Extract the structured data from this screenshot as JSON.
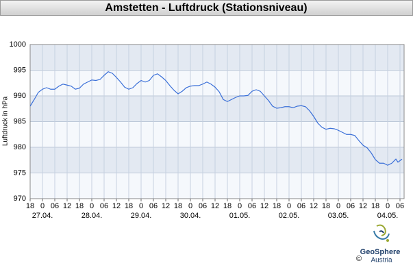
{
  "chart_data": {
    "type": "line",
    "title": "Amstetten - Luftdruck (Stationsniveau)",
    "y_label": "Luftdruck in hPa",
    "x": [
      0,
      2,
      4,
      6,
      8,
      10,
      12,
      14,
      16,
      18,
      20,
      22,
      24,
      26,
      28,
      30,
      32,
      34,
      36,
      38,
      40,
      42,
      44,
      46,
      48,
      50,
      52,
      54,
      56,
      58,
      60,
      62,
      64,
      66,
      68,
      70,
      72,
      74,
      76,
      78,
      80,
      82,
      84,
      86,
      88,
      90,
      92,
      94,
      96,
      98,
      100,
      102,
      104,
      106,
      108,
      110,
      112,
      114,
      116,
      118,
      120,
      122,
      124,
      126,
      128,
      130,
      132,
      134,
      136,
      138,
      140,
      142,
      144,
      146,
      148,
      150,
      152,
      154,
      156,
      158,
      160,
      162,
      164,
      166,
      168,
      170,
      172,
      174,
      176,
      178,
      179,
      181
    ],
    "series": [
      {
        "color": "#3a6fd8",
        "values": [
          988.0,
          989.3,
          990.7,
          991.3,
          991.6,
          991.3,
          991.3,
          991.9,
          992.3,
          992.1,
          991.9,
          991.3,
          991.5,
          992.3,
          992.7,
          993.1,
          993.0,
          993.2,
          994.0,
          994.7,
          994.4,
          993.6,
          992.7,
          991.7,
          991.3,
          991.6,
          992.4,
          993.0,
          992.7,
          993.0,
          994.0,
          994.3,
          993.7,
          993.0,
          992.0,
          991.1,
          990.4,
          990.9,
          991.6,
          991.9,
          992.0,
          992.0,
          992.3,
          992.7,
          992.3,
          991.7,
          990.8,
          989.3,
          988.9,
          989.3,
          989.7,
          990.0,
          990.0,
          990.1,
          990.9,
          991.2,
          990.9,
          990.0,
          989.1,
          988.0,
          987.6,
          987.7,
          987.9,
          987.9,
          987.7,
          988.0,
          988.1,
          987.9,
          987.1,
          986.0,
          984.7,
          983.9,
          983.5,
          983.7,
          983.6,
          983.3,
          982.9,
          982.5,
          982.5,
          982.3,
          981.3,
          980.4,
          979.9,
          978.9,
          977.6,
          976.9,
          976.9,
          976.5,
          976.9,
          977.7,
          977.1,
          977.7
        ]
      }
    ],
    "xlim": [
      0,
      182
    ],
    "xticks": [
      {
        "value": 0,
        "label": "18"
      },
      {
        "value": 6,
        "label": "0"
      },
      {
        "value": 12,
        "label": "06"
      },
      {
        "value": 18,
        "label": "12"
      },
      {
        "value": 24,
        "label": "18"
      },
      {
        "value": 30,
        "label": "0"
      },
      {
        "value": 36,
        "label": "06"
      },
      {
        "value": 42,
        "label": "12"
      },
      {
        "value": 48,
        "label": "18"
      },
      {
        "value": 54,
        "label": "0"
      },
      {
        "value": 60,
        "label": "06"
      },
      {
        "value": 66,
        "label": "12"
      },
      {
        "value": 72,
        "label": "18"
      },
      {
        "value": 78,
        "label": "0"
      },
      {
        "value": 84,
        "label": "06"
      },
      {
        "value": 90,
        "label": "12"
      },
      {
        "value": 96,
        "label": "18"
      },
      {
        "value": 102,
        "label": "0"
      },
      {
        "value": 108,
        "label": "06"
      },
      {
        "value": 114,
        "label": "12"
      },
      {
        "value": 120,
        "label": "18"
      },
      {
        "value": 126,
        "label": "0"
      },
      {
        "value": 132,
        "label": "06"
      },
      {
        "value": 138,
        "label": "12"
      },
      {
        "value": 144,
        "label": "18"
      },
      {
        "value": 150,
        "label": "0"
      },
      {
        "value": 156,
        "label": "06"
      },
      {
        "value": 162,
        "label": "12"
      },
      {
        "value": 168,
        "label": "18"
      },
      {
        "value": 174,
        "label": "0"
      },
      {
        "value": 180,
        "label": "06"
      }
    ],
    "date_ticks": [
      {
        "value": 6,
        "label": "27.04."
      },
      {
        "value": 30,
        "label": "28.04."
      },
      {
        "value": 54,
        "label": "29.04."
      },
      {
        "value": 78,
        "label": "30.04."
      },
      {
        "value": 102,
        "label": "01.05."
      },
      {
        "value": 126,
        "label": "02.05."
      },
      {
        "value": 150,
        "label": "03.05."
      },
      {
        "value": 174,
        "label": "04.05."
      }
    ],
    "ylim": [
      970,
      1000
    ],
    "yticks": [
      970,
      975,
      980,
      985,
      990,
      995,
      1000
    ],
    "grid": true
  },
  "logo": {
    "name": "GeoSphere",
    "subtitle": "Austria",
    "copyright": "©"
  }
}
